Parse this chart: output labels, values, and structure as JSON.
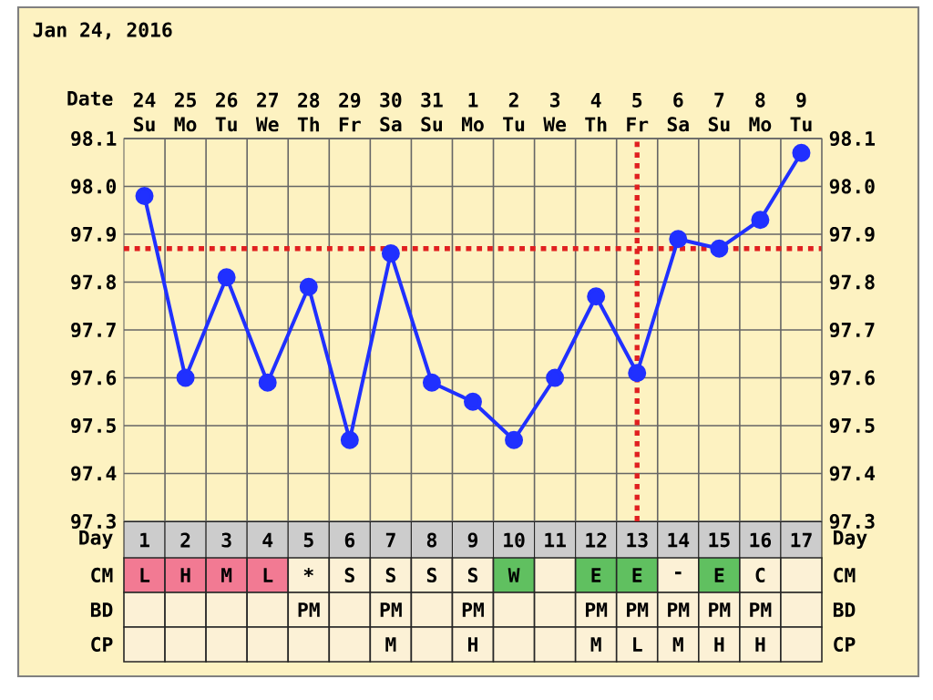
{
  "chart_data": [
    {
      "type": "line",
      "title": "Jan 24, 2016",
      "xlabel": "Day",
      "x2label": "Date",
      "x": [
        1,
        2,
        3,
        4,
        5,
        6,
        7,
        8,
        9,
        10,
        11,
        12,
        13,
        14,
        15,
        16,
        17
      ],
      "xlim": [
        0.5,
        17.5
      ],
      "xticks": [
        1,
        2,
        3,
        4,
        5,
        6,
        7,
        8,
        9,
        10,
        11,
        12,
        13,
        14,
        15,
        16,
        17
      ],
      "values": [
        97.98,
        97.6,
        97.81,
        97.59,
        97.79,
        97.47,
        97.86,
        97.59,
        97.55,
        97.47,
        97.6,
        97.77,
        97.61,
        97.89,
        97.87,
        97.93,
        98.07
      ],
      "color": "#2030ff",
      "marker": "circle",
      "grid": true,
      "ylim": [
        97.3,
        98.1
      ],
      "yticks": [
        97.3,
        97.4,
        97.5,
        97.6,
        97.7,
        97.8,
        97.9,
        {
          "value": 98,
          "label": "98.0"
        },
        98.1
      ],
      "y2lim": [
        97.3,
        98.1
      ],
      "y2ticks": [
        97.3,
        97.4,
        97.5,
        97.6,
        97.7,
        97.8,
        97.9,
        {
          "value": 98,
          "label": "98.0"
        },
        98.1
      ],
      "x2lim": [
        "2016-01-23T12:00",
        "2016-02-09T12:00"
      ],
      "x2ticks": [
        {
          "value": "2016-01-24",
          "label": "24 Su"
        },
        {
          "value": "2016-01-25",
          "label": "25 Mo"
        },
        {
          "value": "2016-01-26",
          "label": "26 Tu"
        },
        {
          "value": "2016-01-27",
          "label": "27 We"
        },
        {
          "value": "2016-01-28",
          "label": "28 Th"
        },
        {
          "value": "2016-01-29",
          "label": "29 Fr"
        },
        {
          "value": "2016-01-30",
          "label": "30 Sa"
        },
        {
          "value": "2016-01-31",
          "label": "31 Su"
        },
        {
          "value": "2016-02-01",
          "label": "1 Mo"
        },
        {
          "value": "2016-02-02",
          "label": "2 Tu"
        },
        {
          "value": "2016-02-03",
          "label": "3 We"
        },
        {
          "value": "2016-02-04",
          "label": "4 Th"
        },
        {
          "value": "2016-02-05",
          "label": "5 Fr"
        },
        {
          "value": "2016-02-06",
          "label": "6 Sa"
        },
        {
          "value": "2016-02-07",
          "label": "7 Su"
        },
        {
          "value": "2016-02-08",
          "label": "8 Mo"
        },
        {
          "value": "2016-02-09",
          "label": "9 Tu"
        }
      ],
      "ref_lines": [
        {
          "axis": "y",
          "value": 97.87,
          "color": "#e02020",
          "line_style": "dotted"
        },
        {
          "axis": "x",
          "value": 13,
          "color": "#e02020",
          "line_style": "dotted"
        }
      ]
    },
    {
      "type": "other",
      "y_categories": [
        "CM",
        "BD",
        "CP"
      ],
      "cell_labels": [
        [
          "L",
          "H",
          "M",
          "L",
          "*",
          "S",
          "S",
          "S",
          "S",
          "W",
          null,
          "E",
          "E",
          "-",
          "E",
          "C",
          null
        ],
        [
          null,
          null,
          null,
          null,
          "PM",
          null,
          "PM",
          null,
          "PM",
          null,
          null,
          "PM",
          "PM",
          "PM",
          "PM",
          "PM",
          null
        ],
        [
          null,
          null,
          null,
          null,
          null,
          null,
          "M",
          null,
          "H",
          null,
          null,
          "M",
          "L",
          "M",
          "H",
          "H",
          null
        ]
      ],
      "colors": [
        [
          "#f27a93",
          "#f27a93",
          "#f27a93",
          "#f27a93",
          "#fcf1d6",
          "#fcf1d6",
          "#fcf1d6",
          "#fcf1d6",
          "#fcf1d6",
          "#60c060",
          "#fcf1d6",
          "#60c060",
          "#60c060",
          "#fcf1d6",
          "#60c060",
          "#fcf1d6",
          "#fcf1d6"
        ],
        [
          "#fcf1d6",
          "#fcf1d6",
          "#fcf1d6",
          "#fcf1d6",
          "#fcf1d6",
          "#fcf1d6",
          "#fcf1d6",
          "#fcf1d6",
          "#fcf1d6",
          "#fcf1d6",
          "#fcf1d6",
          "#fcf1d6",
          "#fcf1d6",
          "#fcf1d6",
          "#fcf1d6",
          "#fcf1d6",
          "#fcf1d6"
        ],
        [
          "#fcf1d6",
          "#fcf1d6",
          "#fcf1d6",
          "#fcf1d6",
          "#fcf1d6",
          "#fcf1d6",
          "#fcf1d6",
          "#fcf1d6",
          "#fcf1d6",
          "#fcf1d6",
          "#fcf1d6",
          "#fcf1d6",
          "#fcf1d6",
          "#fcf1d6",
          "#fcf1d6",
          "#fcf1d6",
          "#fcf1d6"
        ]
      ]
    }
  ]
}
